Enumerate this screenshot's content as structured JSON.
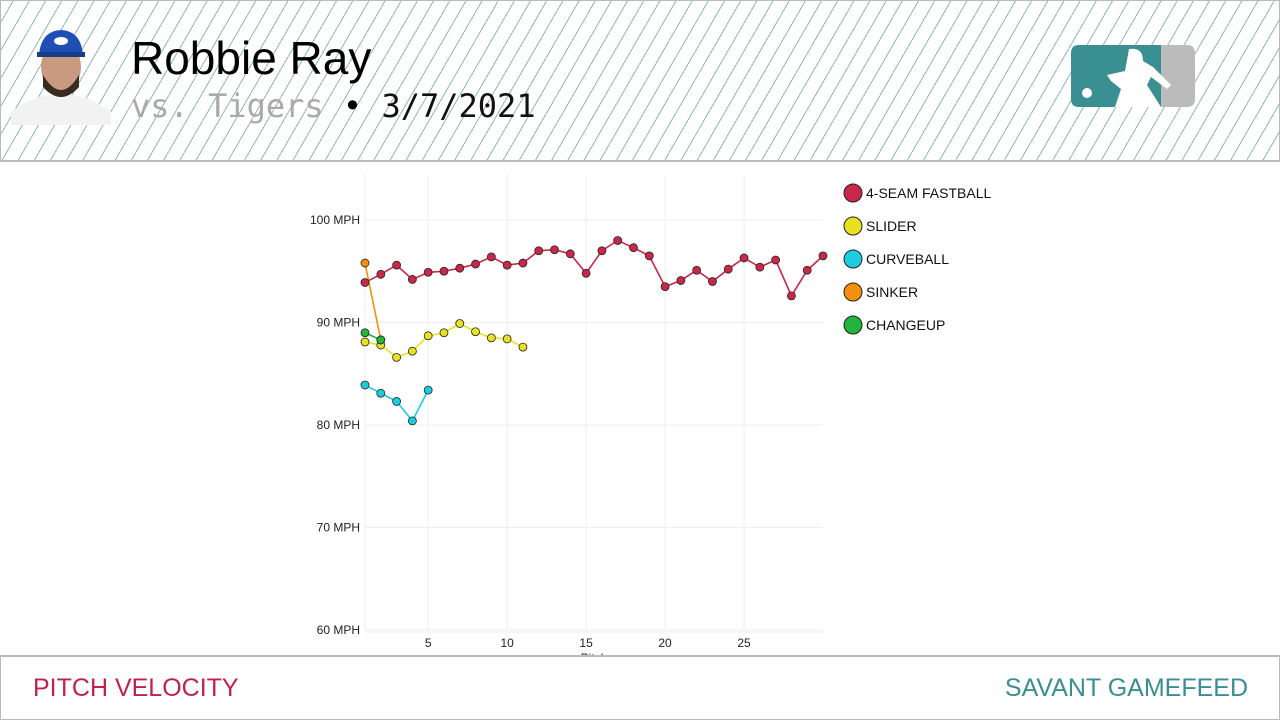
{
  "header": {
    "player_name": "Robbie Ray",
    "opponent": "vs. Tigers",
    "separator": "•",
    "date": "3/7/2021"
  },
  "footer": {
    "title": "PITCH VELOCITY",
    "brand": "SAVANT GAMEFEED"
  },
  "chart_data": {
    "type": "line",
    "title": "Pitch Velocity",
    "xlabel": "Pitch",
    "ylabel": "",
    "xlim": [
      1,
      30
    ],
    "ylim": [
      60,
      104.4
    ],
    "xticks": [
      5,
      10,
      15,
      20,
      25
    ],
    "yticks": [
      {
        "v": 60,
        "label": "60 MPH"
      },
      {
        "v": 70,
        "label": "70 MPH"
      },
      {
        "v": 80,
        "label": "80 MPH"
      },
      {
        "v": 90,
        "label": "90 MPH"
      },
      {
        "v": 100,
        "label": "100 MPH"
      }
    ],
    "legend_position": "right",
    "series": [
      {
        "name": "4-SEAM FASTBALL",
        "color": "#c8284a",
        "x": [
          1,
          2,
          3,
          4,
          5,
          6,
          7,
          8,
          9,
          10,
          11,
          12,
          13,
          14,
          15,
          16,
          17,
          18,
          19,
          20,
          21,
          22,
          23,
          24,
          25,
          26,
          27,
          28,
          29,
          30
        ],
        "values": [
          93.9,
          94.7,
          95.6,
          94.2,
          94.9,
          95.0,
          95.3,
          95.7,
          96.4,
          95.6,
          95.8,
          97.0,
          97.1,
          96.7,
          94.8,
          97.0,
          98.0,
          97.3,
          96.5,
          93.5,
          94.1,
          95.1,
          94.0,
          95.2,
          96.3,
          95.4,
          96.1,
          92.6,
          95.1,
          96.5
        ]
      },
      {
        "name": "SLIDER",
        "color": "#e8e020",
        "x": [
          1,
          2,
          3,
          4,
          5,
          6,
          7,
          8,
          9,
          10,
          11
        ],
        "values": [
          88.1,
          87.8,
          86.6,
          87.2,
          88.7,
          89.0,
          89.9,
          89.1,
          88.5,
          88.4,
          87.6
        ]
      },
      {
        "name": "CURVEBALL",
        "color": "#1ccde0",
        "x": [
          1,
          2,
          3,
          4,
          5
        ],
        "values": [
          83.9,
          83.1,
          82.3,
          80.4,
          83.4
        ]
      },
      {
        "name": "SINKER",
        "color": "#f5900f",
        "x": [
          1,
          2
        ],
        "values": [
          95.8,
          88.3
        ]
      },
      {
        "name": "CHANGEUP",
        "color": "#22b43c",
        "x": [
          1,
          2
        ],
        "values": [
          89.0,
          88.3
        ]
      }
    ]
  }
}
